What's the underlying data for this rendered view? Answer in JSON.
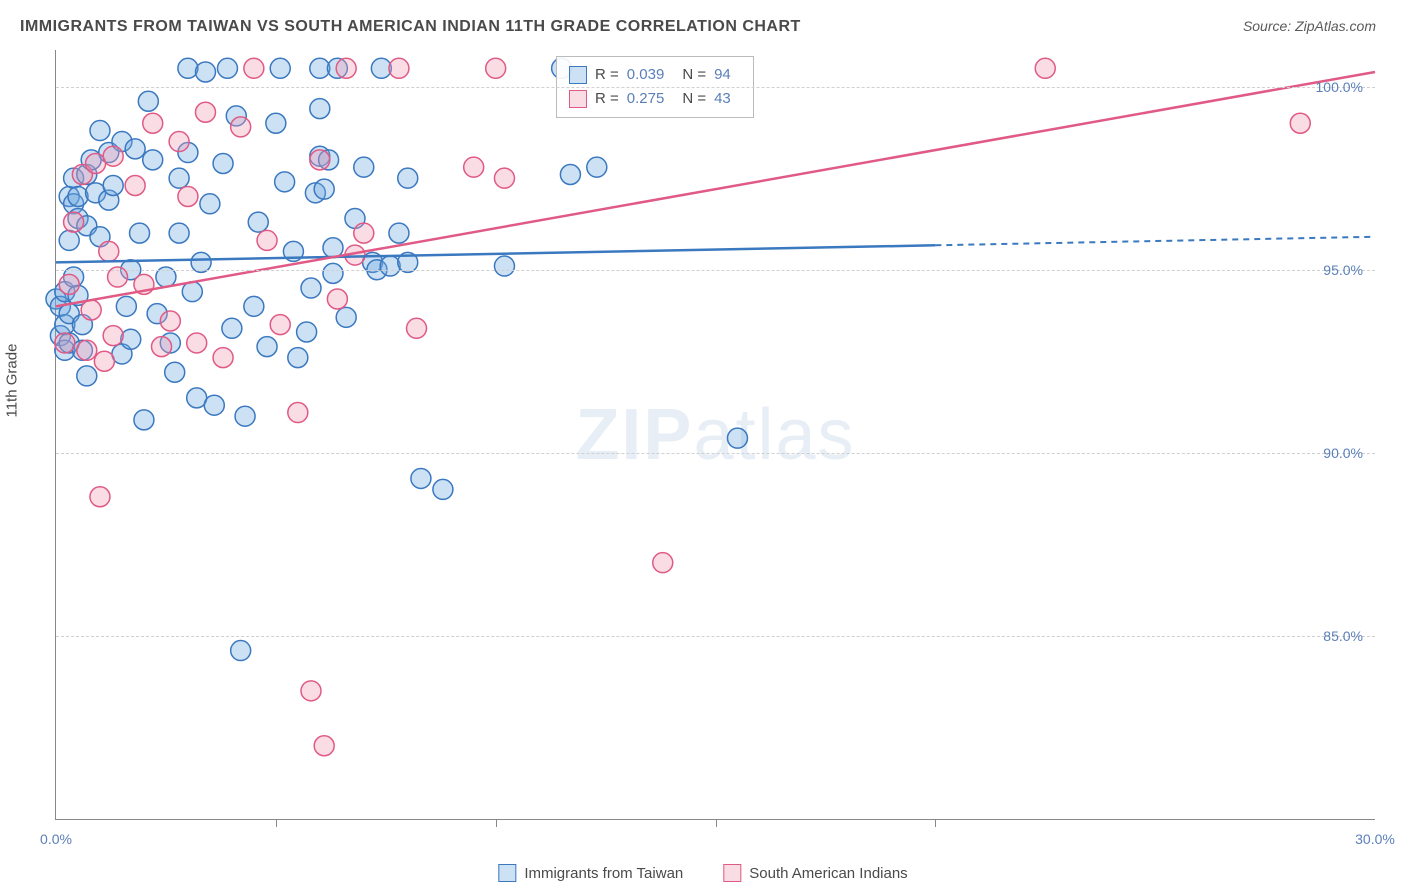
{
  "title": "IMMIGRANTS FROM TAIWAN VS SOUTH AMERICAN INDIAN 11TH GRADE CORRELATION CHART",
  "source_label": "Source: ZipAtlas.com",
  "y_axis_label": "11th Grade",
  "watermark_bold": "ZIP",
  "watermark_light": "atlas",
  "chart": {
    "type": "scatter-with-regression",
    "background_color": "#ffffff",
    "grid_color": "#d0d0d0",
    "axis_color": "#888888",
    "tick_label_color": "#5b7fb8",
    "xlim": [
      0,
      30
    ],
    "ylim": [
      80,
      101
    ],
    "x_tick_labels": [
      {
        "v": 0,
        "label": "0.0%"
      },
      {
        "v": 30,
        "label": "30.0%"
      }
    ],
    "x_minor_ticks": [
      5,
      10,
      15,
      20
    ],
    "y_ticks": [
      {
        "v": 85,
        "label": "85.0%"
      },
      {
        "v": 90,
        "label": "90.0%"
      },
      {
        "v": 95,
        "label": "95.0%"
      },
      {
        "v": 100,
        "label": "100.0%"
      }
    ],
    "marker_radius": 10,
    "marker_opacity": 0.45,
    "marker_stroke_width": 1.5,
    "line_width": 2.5,
    "series": [
      {
        "key": "taiwan",
        "label": "Immigrants from Taiwan",
        "color": "#6fa8e0",
        "fill": "rgba(111,168,224,0.35)",
        "stroke": "#3a78c0",
        "R": "0.039",
        "N": "94",
        "trend": {
          "x1": 0,
          "y1": 95.2,
          "x2": 30,
          "y2": 95.9,
          "solid_until_x": 20
        },
        "points": [
          [
            0.0,
            94.2
          ],
          [
            0.1,
            93.2
          ],
          [
            0.1,
            94.0
          ],
          [
            0.2,
            93.5
          ],
          [
            0.2,
            92.8
          ],
          [
            0.2,
            94.4
          ],
          [
            0.3,
            93.0
          ],
          [
            0.3,
            93.8
          ],
          [
            0.3,
            95.8
          ],
          [
            0.3,
            97.0
          ],
          [
            0.4,
            96.8
          ],
          [
            0.4,
            97.5
          ],
          [
            0.4,
            94.8
          ],
          [
            0.5,
            96.4
          ],
          [
            0.5,
            97.0
          ],
          [
            0.5,
            94.3
          ],
          [
            0.6,
            93.5
          ],
          [
            0.6,
            92.8
          ],
          [
            0.7,
            92.1
          ],
          [
            0.7,
            96.2
          ],
          [
            0.7,
            97.6
          ],
          [
            0.8,
            98.0
          ],
          [
            0.9,
            97.1
          ],
          [
            1.0,
            95.9
          ],
          [
            1.0,
            98.8
          ],
          [
            1.2,
            96.9
          ],
          [
            1.2,
            98.2
          ],
          [
            1.3,
            97.3
          ],
          [
            1.5,
            98.5
          ],
          [
            1.5,
            92.7
          ],
          [
            1.6,
            94.0
          ],
          [
            1.7,
            93.1
          ],
          [
            1.7,
            95.0
          ],
          [
            1.8,
            98.3
          ],
          [
            1.9,
            96.0
          ],
          [
            2.0,
            90.9
          ],
          [
            2.1,
            99.6
          ],
          [
            2.2,
            98.0
          ],
          [
            2.3,
            93.8
          ],
          [
            2.5,
            94.8
          ],
          [
            2.6,
            93.0
          ],
          [
            2.7,
            92.2
          ],
          [
            2.8,
            97.5
          ],
          [
            2.8,
            96.0
          ],
          [
            3.0,
            100.5
          ],
          [
            3.0,
            98.2
          ],
          [
            3.1,
            94.4
          ],
          [
            3.2,
            91.5
          ],
          [
            3.3,
            95.2
          ],
          [
            3.4,
            100.4
          ],
          [
            3.5,
            96.8
          ],
          [
            3.6,
            91.3
          ],
          [
            3.8,
            97.9
          ],
          [
            3.9,
            100.5
          ],
          [
            4.0,
            93.4
          ],
          [
            4.1,
            99.2
          ],
          [
            4.2,
            84.6
          ],
          [
            4.3,
            91.0
          ],
          [
            4.5,
            94.0
          ],
          [
            4.6,
            96.3
          ],
          [
            4.8,
            92.9
          ],
          [
            5.0,
            99.0
          ],
          [
            5.2,
            97.4
          ],
          [
            5.1,
            100.5
          ],
          [
            5.4,
            95.5
          ],
          [
            5.5,
            92.6
          ],
          [
            5.7,
            93.3
          ],
          [
            5.8,
            94.5
          ],
          [
            5.9,
            97.1
          ],
          [
            6.0,
            98.1
          ],
          [
            6.0,
            100.5
          ],
          [
            6.0,
            99.4
          ],
          [
            6.1,
            97.2
          ],
          [
            6.2,
            98.0
          ],
          [
            6.3,
            95.6
          ],
          [
            6.3,
            94.9
          ],
          [
            6.4,
            100.5
          ],
          [
            6.6,
            93.7
          ],
          [
            6.8,
            96.4
          ],
          [
            7.0,
            97.8
          ],
          [
            7.2,
            95.2
          ],
          [
            7.3,
            95.0
          ],
          [
            7.4,
            100.5
          ],
          [
            7.6,
            95.1
          ],
          [
            7.8,
            96.0
          ],
          [
            8.0,
            95.2
          ],
          [
            8.0,
            97.5
          ],
          [
            8.3,
            89.3
          ],
          [
            8.8,
            89.0
          ],
          [
            10.2,
            95.1
          ],
          [
            11.5,
            100.5
          ],
          [
            11.7,
            97.6
          ],
          [
            12.3,
            97.8
          ],
          [
            15.5,
            90.4
          ]
        ]
      },
      {
        "key": "sai",
        "label": "South American Indians",
        "color": "#f29bb4",
        "fill": "rgba(242,155,180,0.35)",
        "stroke": "#e05a85",
        "R": "0.275",
        "N": "43",
        "trend": {
          "x1": 0,
          "y1": 94.0,
          "x2": 30,
          "y2": 100.4,
          "solid_until_x": 30
        },
        "points": [
          [
            0.2,
            93.0
          ],
          [
            0.3,
            94.6
          ],
          [
            0.4,
            96.3
          ],
          [
            0.6,
            97.6
          ],
          [
            0.7,
            92.8
          ],
          [
            0.8,
            93.9
          ],
          [
            0.9,
            97.9
          ],
          [
            1.0,
            88.8
          ],
          [
            1.1,
            92.5
          ],
          [
            1.2,
            95.5
          ],
          [
            1.3,
            93.2
          ],
          [
            1.3,
            98.1
          ],
          [
            1.4,
            94.8
          ],
          [
            1.8,
            97.3
          ],
          [
            2.0,
            94.6
          ],
          [
            2.2,
            99.0
          ],
          [
            2.4,
            92.9
          ],
          [
            2.6,
            93.6
          ],
          [
            2.8,
            98.5
          ],
          [
            3.0,
            97.0
          ],
          [
            3.2,
            93.0
          ],
          [
            3.4,
            99.3
          ],
          [
            3.8,
            92.6
          ],
          [
            4.2,
            98.9
          ],
          [
            4.5,
            100.5
          ],
          [
            4.8,
            95.8
          ],
          [
            5.1,
            93.5
          ],
          [
            5.5,
            91.1
          ],
          [
            5.8,
            83.5
          ],
          [
            6.0,
            98.0
          ],
          [
            6.1,
            82.0
          ],
          [
            6.4,
            94.2
          ],
          [
            6.6,
            100.5
          ],
          [
            6.8,
            95.4
          ],
          [
            7.0,
            96.0
          ],
          [
            7.8,
            100.5
          ],
          [
            8.2,
            93.4
          ],
          [
            9.5,
            97.8
          ],
          [
            10.0,
            100.5
          ],
          [
            10.2,
            97.5
          ],
          [
            13.8,
            87.0
          ],
          [
            22.5,
            100.5
          ],
          [
            28.3,
            99.0
          ]
        ]
      }
    ]
  },
  "legend_stats": {
    "rows": [
      {
        "swatch_fill": "rgba(111,168,224,0.35)",
        "swatch_stroke": "#3a78c0",
        "R": "0.039",
        "N": "94"
      },
      {
        "swatch_fill": "rgba(242,155,180,0.35)",
        "swatch_stroke": "#e05a85",
        "R": "0.275",
        "N": "43"
      }
    ],
    "labels": {
      "R": "R =",
      "N": "N ="
    }
  }
}
